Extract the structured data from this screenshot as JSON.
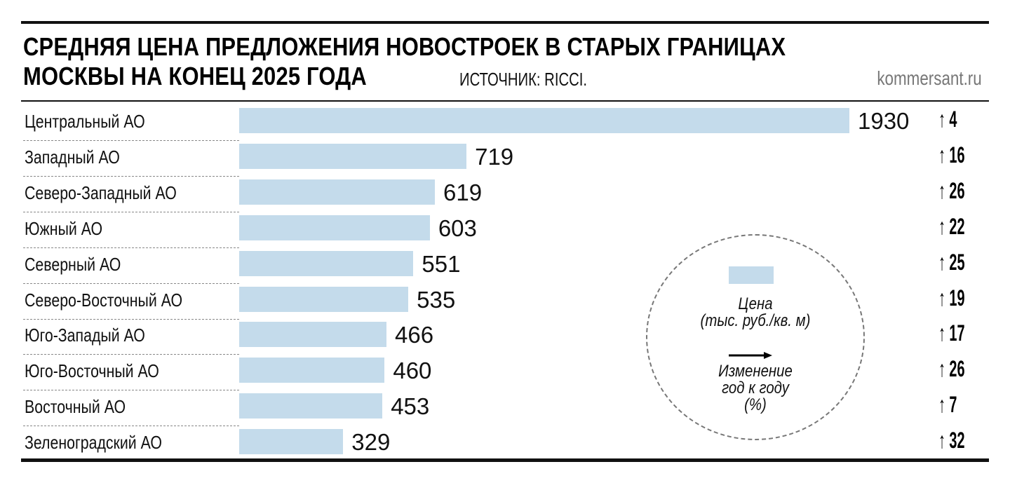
{
  "header": {
    "title_line1": "СРЕДНЯЯ ЦЕНА ПРЕДЛОЖЕНИЯ НОВОСТРОЕК В СТАРЫХ ГРАНИЦАХ",
    "title_line2": "МОСКВЫ НА КОНЕЦ 2025 ГОДА",
    "source": "ИСТОЧНИК: RICCI.",
    "site": "kommersant.ru"
  },
  "legend": {
    "price_label": "Цена",
    "price_unit": "(тыс. руб./кв. м)",
    "change_label": "Изменение",
    "change_label2": "год к году",
    "change_unit": "(%)"
  },
  "colors": {
    "bar": "#c4dbeb",
    "text": "#111111",
    "site": "#777777"
  },
  "rows": [
    {
      "district": "Центральный АО",
      "price": "1930",
      "change": "↑ 4"
    },
    {
      "district": "Западный АО",
      "price": "719",
      "change": "↑ 16"
    },
    {
      "district": "Северо-Западный АО",
      "price": "619",
      "change": "↑ 26"
    },
    {
      "district": "Южный АО",
      "price": "603",
      "change": "↑ 22"
    },
    {
      "district": "Северный АО",
      "price": "551",
      "change": "↑ 25"
    },
    {
      "district": "Северо-Восточный АО",
      "price": "535",
      "change": "↑ 19"
    },
    {
      "district": "Юго-Западый АО",
      "price": "466",
      "change": "↑ 17"
    },
    {
      "district": "Юго-Восточный АО",
      "price": "460",
      "change": "↑ 26"
    },
    {
      "district": "Восточный АО",
      "price": "453",
      "change": "↑ 7"
    },
    {
      "district": "Зеленоградский АО",
      "price": "329",
      "change": "↑ 32"
    }
  ],
  "chart_data": {
    "type": "bar",
    "orientation": "horizontal",
    "title": "Средняя цена предложения новостроек в старых границах Москвы на конец 2025 года",
    "source": "Источник: RICCI.",
    "categories": [
      "Центральный АО",
      "Западный АО",
      "Северо-Западный АО",
      "Южный АО",
      "Северный АО",
      "Северо-Восточный АО",
      "Юго-Западый АО",
      "Юго-Восточный АО",
      "Восточный АО",
      "Зеленоградский АО"
    ],
    "series": [
      {
        "name": "Цена (тыс. руб./кв. м)",
        "values": [
          1930,
          719,
          619,
          603,
          551,
          535,
          466,
          460,
          453,
          329
        ]
      },
      {
        "name": "Изменение год к году (%)",
        "values": [
          4,
          16,
          26,
          22,
          25,
          19,
          17,
          26,
          7,
          32
        ]
      }
    ],
    "xlabel": "",
    "ylabel": "",
    "grid": false,
    "legend_position": "right (dashed circle)"
  }
}
